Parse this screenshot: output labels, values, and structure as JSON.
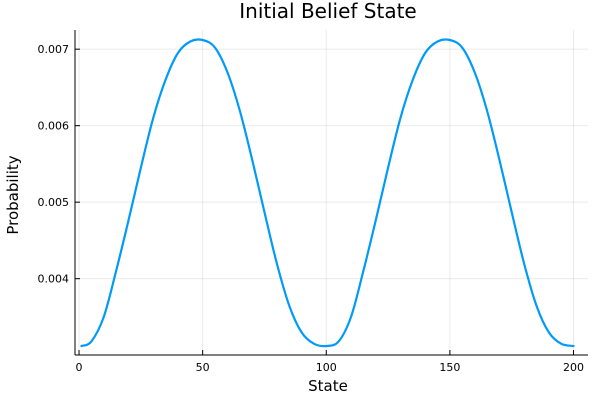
{
  "chart_data": {
    "type": "line",
    "title": "Initial Belief State",
    "xlabel": "State",
    "ylabel": "Probability",
    "xlim": [
      1,
      200
    ],
    "ylim": [
      0.00312,
      0.00712
    ],
    "xticks": [
      0,
      50,
      100,
      150,
      200
    ],
    "xtick_labels": [
      "0",
      "50",
      "100",
      "150",
      "200"
    ],
    "yticks": [
      0.004,
      0.005,
      0.006,
      0.007
    ],
    "ytick_labels": [
      "0.004",
      "0.005",
      "0.006",
      "0.007"
    ],
    "grid": true,
    "legend": "none",
    "series": [
      {
        "color": "#009AFA",
        "x": [
          1,
          5,
          10,
          15,
          20,
          25,
          30,
          35,
          40,
          45,
          50,
          55,
          60,
          65,
          70,
          75,
          80,
          85,
          90,
          95,
          100,
          105,
          110,
          115,
          120,
          125,
          130,
          135,
          140,
          145,
          150,
          155,
          160,
          165,
          170,
          175,
          180,
          185,
          190,
          195,
          200
        ],
        "y": [
          0.00312,
          0.00318,
          0.0035,
          0.0041,
          0.00476,
          0.00545,
          0.0061,
          0.0066,
          0.00695,
          0.0071,
          0.00712,
          0.00702,
          0.0067,
          0.0062,
          0.00556,
          0.00487,
          0.0042,
          0.00365,
          0.0033,
          0.00315,
          0.00312,
          0.00318,
          0.0035,
          0.0041,
          0.00476,
          0.00545,
          0.0061,
          0.0066,
          0.00695,
          0.0071,
          0.00712,
          0.00702,
          0.0067,
          0.0062,
          0.00556,
          0.00487,
          0.0042,
          0.00365,
          0.0033,
          0.00315,
          0.00312
        ]
      }
    ]
  }
}
